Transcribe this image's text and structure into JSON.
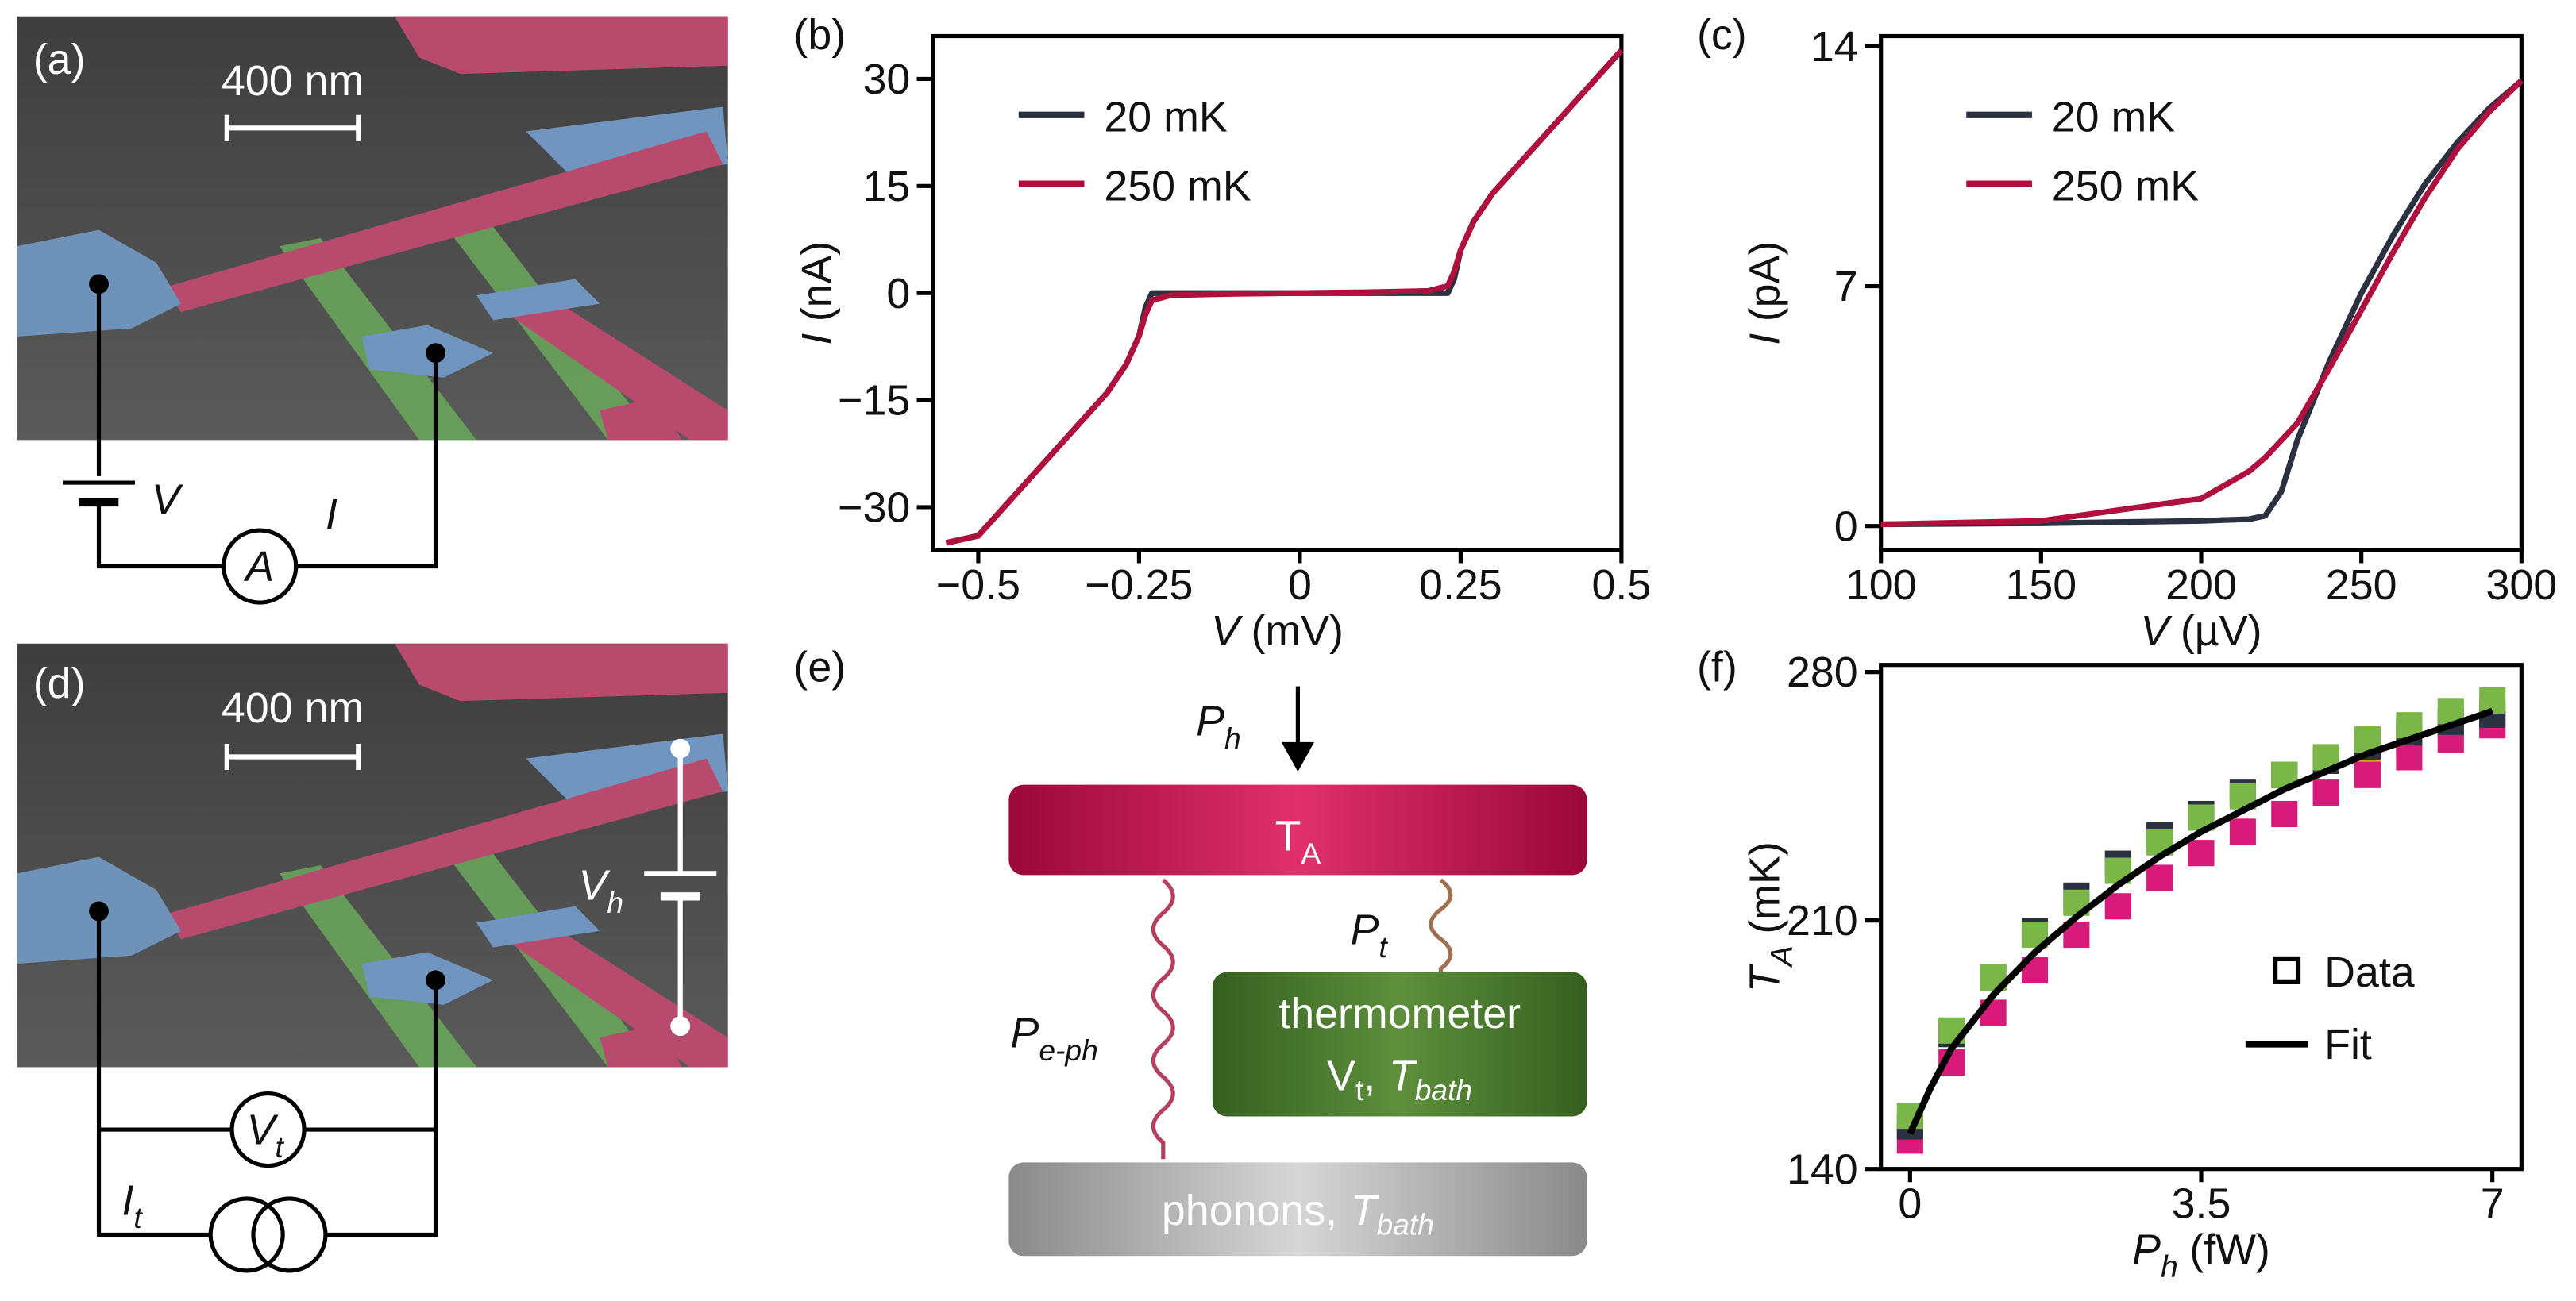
{
  "panel_labels": [
    "(a)",
    "(b)",
    "(c)",
    "(d)",
    "(e)",
    "(f)"
  ],
  "image_a": {
    "scale_bar": "400 nm",
    "source_label": "V",
    "meter_label": "I",
    "meter_symbol": "A"
  },
  "image_d": {
    "scale_bar": "400 nm",
    "heater": {
      "base": "V",
      "sub": "h"
    },
    "voltmeter": {
      "base": "V",
      "sub": "t"
    },
    "current_source": {
      "base": "I",
      "sub": "t"
    }
  },
  "diagram": {
    "input": {
      "base": "P",
      "sub": "h"
    },
    "absorber": {
      "base": "T",
      "sub": "A"
    },
    "coupling_eph": {
      "base": "P",
      "sub": "e-ph"
    },
    "coupling_t": {
      "base": "P",
      "sub": "t"
    },
    "thermometer": {
      "line1": "thermometer",
      "v": "V",
      "v_sub": "t",
      "sep": ",",
      "t": "T",
      "t_sub": "bath"
    },
    "bath": {
      "text": "phonons,",
      "t": "T",
      "t_sub": "bath"
    }
  },
  "chart_data": [
    {
      "type": "line",
      "xlabel": {
        "symbol": "V",
        "unit": "(mV)"
      },
      "ylabel": {
        "symbol": "I",
        "unit": "(nA)"
      },
      "xlim": [
        -0.57,
        0.5
      ],
      "ylim": [
        -36,
        36
      ],
      "xticks": [
        {
          "value": -0.5,
          "label": "−0.5"
        },
        {
          "value": -0.25,
          "label": "−0.25"
        },
        0,
        0.25,
        0.5
      ],
      "yticks": [
        {
          "value": -30,
          "label": "−30"
        },
        {
          "value": -15,
          "label": "−15"
        },
        0,
        15,
        30
      ],
      "legend": "upper left",
      "x": [
        -0.55,
        -0.5,
        -0.45,
        -0.4,
        -0.35,
        -0.3,
        -0.27,
        -0.25,
        -0.24,
        -0.23,
        -0.2,
        -0.1,
        0,
        0.1,
        0.2,
        0.23,
        0.24,
        0.25,
        0.27,
        0.3,
        0.35,
        0.4,
        0.45,
        0.5
      ],
      "series": [
        {
          "name": "20 mK",
          "color": "#2b3140",
          "values": [
            -35,
            -34,
            -29,
            -24,
            -19,
            -14,
            -10,
            -6,
            -2,
            0,
            0,
            0,
            0,
            0,
            0,
            0,
            2,
            6,
            10,
            14,
            19,
            24,
            29,
            34
          ]
        },
        {
          "name": "250 mK",
          "color": "#b0103e",
          "values": [
            -35,
            -34,
            -29,
            -24,
            -19,
            -14,
            -10,
            -6,
            -3,
            -1,
            -0.3,
            -0.1,
            0,
            0.1,
            0.3,
            1,
            3,
            6,
            10,
            14,
            19,
            24,
            29,
            34
          ]
        }
      ]
    },
    {
      "type": "line",
      "xlabel": {
        "symbol": "V",
        "unit": "(µV)"
      },
      "ylabel": {
        "symbol": "I",
        "unit": "(pA)"
      },
      "xlim": [
        100,
        300
      ],
      "ylim": [
        -0.7,
        14.3
      ],
      "xticks": [
        100,
        150,
        200,
        250,
        300
      ],
      "yticks": [
        0,
        7,
        14
      ],
      "legend": "upper left",
      "x": [
        100,
        150,
        200,
        215,
        220,
        225,
        230,
        240,
        250,
        260,
        270,
        280,
        290,
        300
      ],
      "series": [
        {
          "name": "20 mK",
          "color": "#2b3140",
          "values": [
            0.05,
            0.08,
            0.15,
            0.2,
            0.3,
            1,
            2.5,
            4.8,
            6.8,
            8.5,
            10,
            11.2,
            12.2,
            13
          ]
        },
        {
          "name": "250 mK",
          "color": "#b0103e",
          "values": [
            0.05,
            0.15,
            0.8,
            1.6,
            2,
            2.5,
            3,
            4.6,
            6.3,
            8,
            9.6,
            11,
            12.1,
            13
          ]
        }
      ]
    },
    {
      "type": "scatter",
      "xlabel": {
        "symbol": "P",
        "sub": "h",
        "unit": "(fW)"
      },
      "ylabel": {
        "symbol": "T",
        "sub": "A",
        "unit": "(mK)"
      },
      "xlim": [
        -0.35,
        7.35
      ],
      "ylim": [
        140,
        282
      ],
      "xticks": [
        0,
        3.5,
        7
      ],
      "yticks": [
        140,
        210,
        280
      ],
      "legend": "lower right",
      "legend_entries": [
        {
          "label": "Data",
          "marker": "square"
        },
        {
          "label": "Fit",
          "marker": "line"
        }
      ],
      "series": [
        {
          "mode": "markers",
          "color": "#d9a020",
          "x": [
            5.5,
            6,
            6.5,
            7
          ],
          "values": [
            256,
            260,
            264,
            266
          ]
        },
        {
          "mode": "markers",
          "color": "#d81b7a",
          "x": [
            0,
            0.5,
            1,
            1.5,
            2,
            2.5,
            3,
            3.5,
            4,
            4.5,
            5,
            5.5,
            6,
            6.5,
            7
          ],
          "values": [
            148,
            170,
            184,
            196,
            206,
            214,
            222,
            229,
            235,
            240,
            246,
            251,
            256,
            261,
            265
          ]
        },
        {
          "mode": "markers",
          "color": "#2b3140",
          "x": [
            0,
            0.5,
            1,
            1.5,
            2,
            2.5,
            3,
            3.5,
            4,
            4.5,
            5,
            5.5,
            6,
            6.5,
            7
          ],
          "values": [
            152,
            178,
            194,
            207,
            217,
            226,
            234,
            240,
            246,
            251,
            255,
            259,
            263,
            266,
            268
          ]
        },
        {
          "mode": "markers",
          "color": "#7ab648",
          "x": [
            0,
            0.5,
            1,
            1.5,
            2,
            2.5,
            3,
            3.5,
            4,
            4.5,
            5,
            5.5,
            6,
            6.5,
            7
          ],
          "values": [
            155,
            179,
            194,
            206,
            215,
            224,
            232,
            239,
            245,
            251,
            256,
            261,
            265,
            269,
            272
          ]
        },
        {
          "mode": "line",
          "color": "#000000",
          "x": [
            0,
            0.25,
            0.5,
            1,
            1.5,
            2,
            2.5,
            3,
            3.5,
            4,
            4.5,
            5,
            5.5,
            6,
            6.5,
            7
          ],
          "values": [
            150,
            163,
            174,
            189,
            201,
            211,
            220,
            228,
            235,
            241,
            247,
            252,
            257,
            261,
            265,
            269
          ]
        }
      ]
    }
  ]
}
